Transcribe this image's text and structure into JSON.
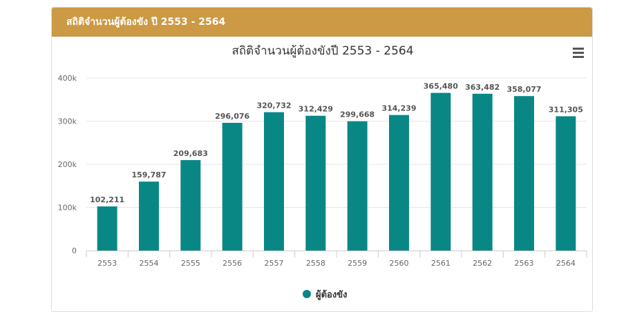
{
  "panel": {
    "header_title": "สถิติจำนวนผู้ต้องขัง ปี 2553 - 2564"
  },
  "colors": {
    "header_bg": "#cc9a45",
    "bar": "#098785",
    "grid": "#e6e6e6",
    "text": "#333333",
    "axis_label": "#666666"
  },
  "icons": {
    "menu": "hamburger-menu-icon",
    "legend_marker": "circle"
  },
  "chart_data": {
    "type": "bar",
    "title": "สถิติจำนวนผู้ต้องขังปี 2553 - 2564",
    "categories": [
      "2553",
      "2554",
      "2555",
      "2556",
      "2557",
      "2558",
      "2559",
      "2560",
      "2561",
      "2562",
      "2563",
      "2564"
    ],
    "series": [
      {
        "name": "ผู้ต้องขัง",
        "values": [
          102211,
          159787,
          209683,
          296076,
          320732,
          312429,
          299668,
          314239,
          365480,
          363482,
          358077,
          311305
        ],
        "labels": [
          "102,211",
          "159,787",
          "209,683",
          "296,076",
          "320,732",
          "312,429",
          "299,668",
          "314,239",
          "365,480",
          "363,482",
          "358,077",
          "311,305"
        ]
      }
    ],
    "yticks": [
      0,
      100000,
      200000,
      300000,
      400000
    ],
    "ytick_labels": [
      "0",
      "100k",
      "200k",
      "300k",
      "400k"
    ],
    "ylim": [
      0,
      400000
    ],
    "grid": true,
    "legend_position": "bottom-center",
    "data_labels": true
  }
}
